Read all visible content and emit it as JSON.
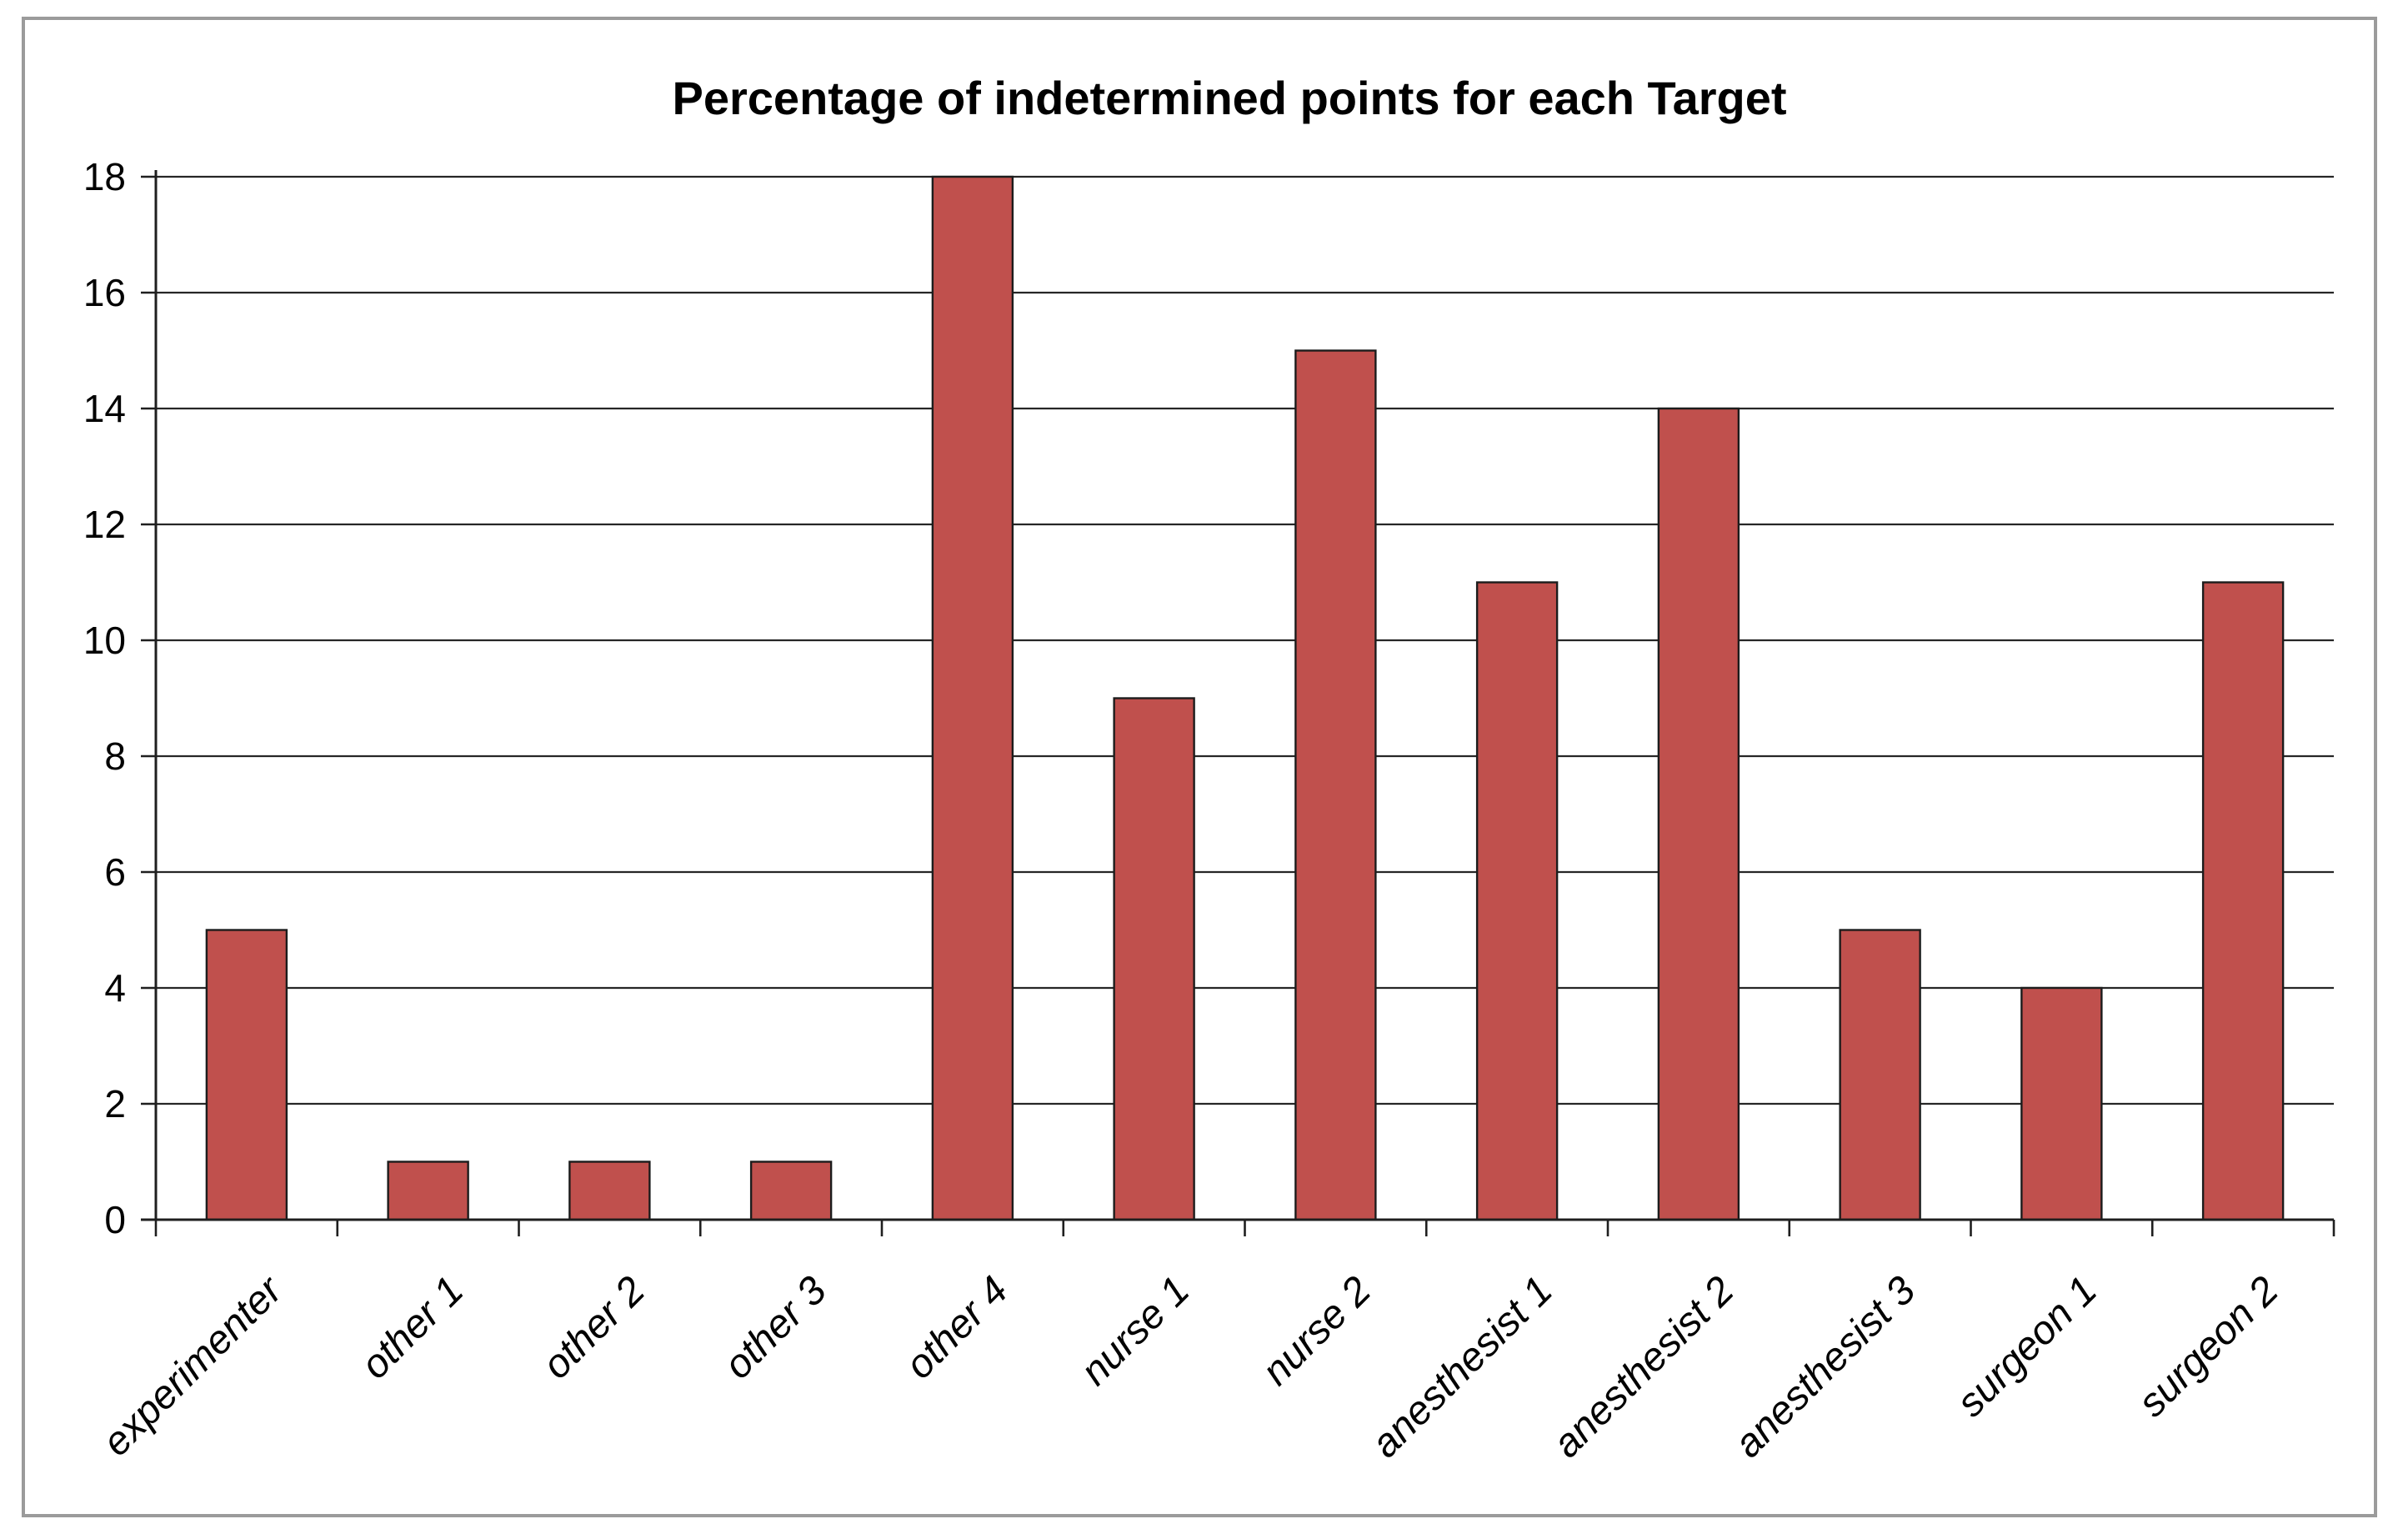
{
  "figure": {
    "background_color": "#ffffff",
    "frame_border_color": "#9b9b9b"
  },
  "chart_data": {
    "type": "bar",
    "title": "Percentage of indetermined points for each Target",
    "categories": [
      "experimenter",
      "other 1",
      "other 2",
      "other 3",
      "other 4",
      "nurse 1",
      "nurse 2",
      "anesthesist 1",
      "anesthesist 2",
      "anesthesist 3",
      "surgeon 1",
      "surgeon 2"
    ],
    "values": [
      5,
      1,
      1,
      1,
      18,
      9,
      15,
      11,
      14,
      5,
      4,
      11
    ],
    "xlabel": "",
    "ylabel": "",
    "ylim": [
      0,
      18
    ],
    "ytick_step": 2,
    "ytick_labels": [
      "0",
      "2",
      "4",
      "6",
      "8",
      "10",
      "12",
      "14",
      "16",
      "18"
    ],
    "grid": true,
    "legend": "none",
    "bar_color": "#C0504D",
    "bar_border_color": "#1c1c1c",
    "gridline_color": "#262626",
    "axis_color": "#1f1f1f",
    "text_color": "#000000"
  }
}
